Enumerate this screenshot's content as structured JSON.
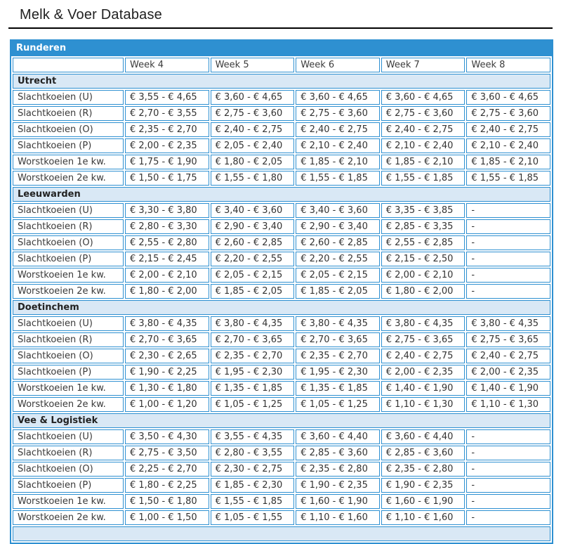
{
  "page": {
    "title": "Melk & Voer Database"
  },
  "colors": {
    "accent_blue": "#2E90D1",
    "section_bg": "#D9E8F5",
    "text": "#333333"
  },
  "table": {
    "title": "Runderen",
    "corner_label": "",
    "week_headers": [
      "Week 4",
      "Week 5",
      "Week 6",
      "Week 7",
      "Week 8"
    ],
    "sections": [
      {
        "name": "Utrecht",
        "rows": [
          {
            "label": "Slachtkoeien (U)",
            "values": [
              "€ 3,55 - € 4,65",
              "€ 3,60 - € 4,65",
              "€ 3,60 - € 4,65",
              "€ 3,60 - € 4,65",
              "€ 3,60 - € 4,65"
            ]
          },
          {
            "label": "Slachtkoeien (R)",
            "values": [
              "€ 2,70 - € 3,55",
              "€ 2,75 - € 3,60",
              "€ 2,75 - € 3,60",
              "€ 2,75 - € 3,60",
              "€ 2,75 - € 3,60"
            ]
          },
          {
            "label": "Slachtkoeien (O)",
            "values": [
              "€ 2,35 - € 2,70",
              "€ 2,40 - € 2,75",
              "€ 2,40 - € 2,75",
              "€ 2,40 - € 2,75",
              "€ 2,40 - € 2,75"
            ]
          },
          {
            "label": "Slachtkoeien (P)",
            "values": [
              "€ 2,00 - € 2,35",
              "€ 2,05 - € 2,40",
              "€ 2,10 - € 2,40",
              "€ 2,10 - € 2,40",
              "€ 2,10 - € 2,40"
            ]
          },
          {
            "label": "Worstkoeien 1e kw.",
            "values": [
              "€ 1,75 - € 1,90",
              "€ 1,80 - € 2,05",
              "€ 1,85 - € 2,10",
              "€ 1,85 - € 2,10",
              "€ 1,85 - € 2,10"
            ]
          },
          {
            "label": "Worstkoeien 2e kw.",
            "values": [
              "€ 1,50 - € 1,75",
              "€ 1,55 - € 1,80",
              "€ 1,55 - € 1,85",
              "€ 1,55 - € 1,85",
              "€ 1,55 - € 1,85"
            ]
          }
        ]
      },
      {
        "name": "Leeuwarden",
        "rows": [
          {
            "label": "Slachtkoeien (U)",
            "values": [
              "€ 3,30 - € 3,80",
              "€ 3,40 - € 3,60",
              "€ 3,40 - € 3,60",
              "€ 3,35 - € 3,85",
              "-"
            ]
          },
          {
            "label": "Slachtkoeien (R)",
            "values": [
              "€ 2,80 - € 3,30",
              "€ 2,90 - € 3,40",
              "€ 2,90 - € 3,40",
              "€ 2,85 - € 3,35",
              "-"
            ]
          },
          {
            "label": "Slachtkoeien (O)",
            "values": [
              "€ 2,55 - € 2,80",
              "€ 2,60 - € 2,85",
              "€ 2,60 - € 2,85",
              "€ 2,55 - € 2,85",
              "-"
            ]
          },
          {
            "label": "Slachtkoeien (P)",
            "values": [
              "€ 2,15 - € 2,45",
              "€ 2,20 - € 2,55",
              "€ 2,20 - € 2,55",
              "€ 2,15 - € 2,50",
              "-"
            ]
          },
          {
            "label": "Worstkoeien 1e kw.",
            "values": [
              "€ 2,00 - € 2,10",
              "€ 2,05 - € 2,15",
              "€ 2,05 - € 2,15",
              "€ 2,00 - € 2,10",
              "-"
            ]
          },
          {
            "label": "Worstkoeien 2e kw.",
            "values": [
              "€ 1,80 - € 2,00",
              "€ 1,85 - € 2,05",
              "€ 1,85 - € 2,05",
              "€ 1,80 - € 2,00",
              "-"
            ]
          }
        ]
      },
      {
        "name": "Doetinchem",
        "rows": [
          {
            "label": "Slachtkoeien (U)",
            "values": [
              "€ 3,80 - € 4,35",
              "€ 3,80 - € 4,35",
              "€ 3,80 - € 4,35",
              "€ 3,80 - € 4,35",
              "€ 3,80 - € 4,35"
            ]
          },
          {
            "label": "Slachtkoeien (R)",
            "values": [
              "€ 2,70 - € 3,65",
              "€ 2,70 - € 3,65",
              "€ 2,70 - € 3,65",
              "€ 2,75 - € 3,65",
              "€ 2,75 - € 3,65"
            ]
          },
          {
            "label": "Slachtkoeien (O)",
            "values": [
              "€ 2,30 - € 2,65",
              "€ 2,35 - € 2,70",
              "€ 2,35 - € 2,70",
              "€ 2,40 - € 2,75",
              "€ 2,40 - € 2,75"
            ]
          },
          {
            "label": "Slachtkoeien (P)",
            "values": [
              "€ 1,90 - € 2,25",
              "€ 1,95 - € 2,30",
              "€ 1,95 - € 2,30",
              "€ 2,00 - € 2,35",
              "€ 2,00 - € 2,35"
            ]
          },
          {
            "label": "Worstkoeien 1e kw.",
            "values": [
              "€ 1,30 - € 1,80",
              "€ 1,35 - € 1,85",
              "€ 1,35 - € 1,85",
              "€ 1,40 - € 1,90",
              "€ 1,40 - € 1,90"
            ]
          },
          {
            "label": "Worstkoeien 2e kw.",
            "values": [
              "€ 1,00 - € 1,20",
              "€ 1,05 - € 1,25",
              "€ 1,05 - € 1,25",
              "€ 1,10 - € 1,30",
              "€ 1,10 - € 1,30"
            ]
          }
        ]
      },
      {
        "name": "Vee & Logistiek",
        "rows": [
          {
            "label": "Slachtkoeien (U)",
            "values": [
              "€ 3,50 - € 4,30",
              "€ 3,55 - € 4,35",
              "€ 3,60 - € 4,40",
              "€ 3,60 - € 4,40",
              "-"
            ]
          },
          {
            "label": "Slachtkoeien (R)",
            "values": [
              "€ 2,75 - € 3,50",
              "€ 2,80 - € 3,55",
              "€ 2,85 - € 3,60",
              "€ 2,85 - € 3,60",
              "-"
            ]
          },
          {
            "label": "Slachtkoeien (O)",
            "values": [
              "€ 2,25 - € 2,70",
              "€ 2,30 - € 2,75",
              "€ 2,35 - € 2,80",
              "€ 2,35 - € 2,80",
              "-"
            ]
          },
          {
            "label": "Slachtkoeien (P)",
            "values": [
              "€ 1,80 - € 2,25",
              "€ 1,85 - € 2,30",
              "€ 1,90 - € 2,35",
              "€ 1,90 - € 2,35",
              "-"
            ]
          },
          {
            "label": "Worstkoeien 1e kw.",
            "values": [
              "€ 1,50 - € 1,80",
              "€ 1,55 - € 1,85",
              "€ 1,60 - € 1,90",
              "€ 1,60 - € 1,90",
              "-"
            ]
          },
          {
            "label": "Worstkoeien 2e kw.",
            "values": [
              "€ 1,00 - € 1,50",
              "€ 1,05 - € 1,55",
              "€ 1,10 - € 1,60",
              "€ 1,10 - € 1,60",
              "-"
            ]
          }
        ]
      }
    ]
  }
}
